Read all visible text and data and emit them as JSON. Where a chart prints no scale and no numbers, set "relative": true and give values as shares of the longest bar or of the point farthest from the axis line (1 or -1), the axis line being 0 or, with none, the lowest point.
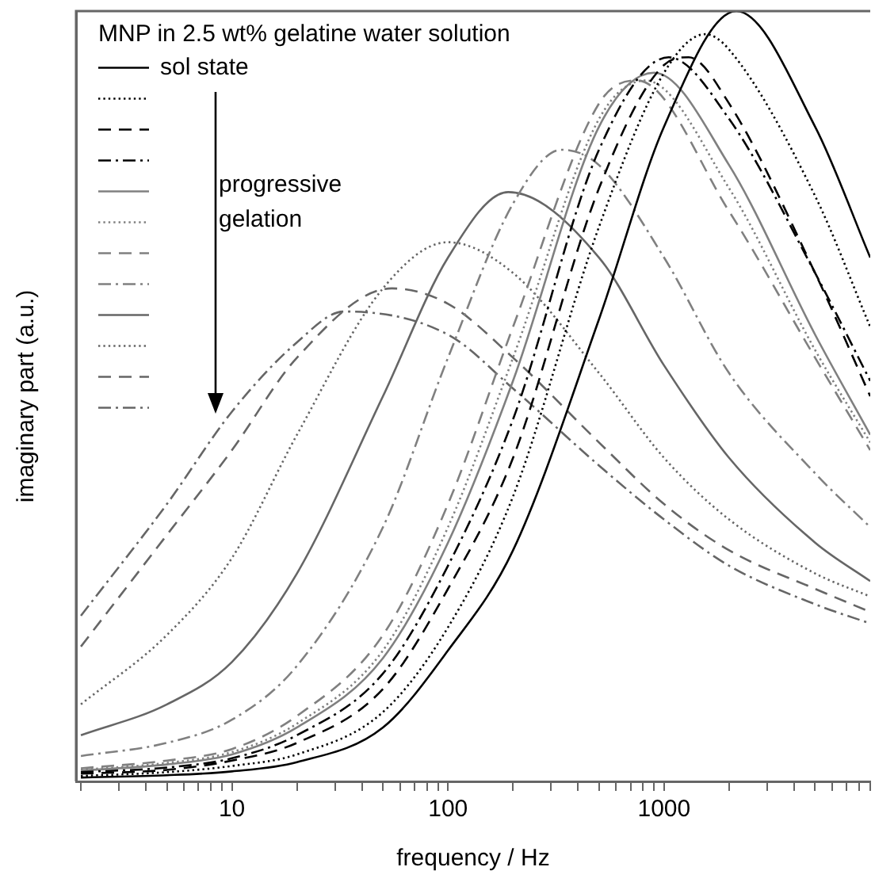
{
  "chart_data": {
    "type": "line",
    "relative": true,
    "xlabel": "frequency / Hz",
    "ylabel": "imaginary part (a.u.)",
    "legend_title": "MNP in 2.5 wt% gelatine water solution",
    "legend": "top left",
    "log": "x",
    "grid": false,
    "marker": "none",
    "xlim": [
      1.9,
      9000
    ],
    "xticks": [
      {
        "value": 2,
        "label": null
      },
      {
        "value": 3,
        "label": null
      },
      {
        "value": 4,
        "label": null
      },
      {
        "value": 5,
        "label": null
      },
      {
        "value": 6,
        "label": null
      },
      {
        "value": 7,
        "label": null
      },
      {
        "value": 8,
        "label": null
      },
      {
        "value": 9,
        "label": null
      },
      10,
      {
        "value": 20,
        "label": null
      },
      {
        "value": 30,
        "label": null
      },
      {
        "value": 40,
        "label": null
      },
      {
        "value": 50,
        "label": null
      },
      {
        "value": 60,
        "label": null
      },
      {
        "value": 70,
        "label": null
      },
      {
        "value": 80,
        "label": null
      },
      {
        "value": 90,
        "label": null
      },
      100,
      {
        "value": 200,
        "label": null
      },
      {
        "value": 300,
        "label": null
      },
      {
        "value": 400,
        "label": null
      },
      {
        "value": 500,
        "label": null
      },
      {
        "value": 600,
        "label": null
      },
      {
        "value": 700,
        "label": null
      },
      {
        "value": 800,
        "label": null
      },
      {
        "value": 900,
        "label": null
      },
      1000,
      {
        "value": 2000,
        "label": null
      },
      {
        "value": 3000,
        "label": null
      },
      {
        "value": 4000,
        "label": null
      },
      {
        "value": 5000,
        "label": null
      },
      {
        "value": 6000,
        "label": null
      },
      {
        "value": 7000,
        "label": null
      },
      {
        "value": 8000,
        "label": null
      },
      {
        "value": 9000,
        "label": null
      }
    ],
    "annotations": [
      "progressive gelation"
    ],
    "series": [
      {
        "name": "sol state",
        "color": "#000000",
        "line_style": "solid",
        "x": [
          2,
          5,
          10,
          20,
          50,
          100,
          200,
          500,
          1000,
          2160,
          5000,
          9000
        ],
        "values": [
          0.005,
          0.008,
          0.013,
          0.025,
          0.07,
          0.17,
          0.3,
          0.6,
          0.85,
          1.0,
          0.85,
          0.68
        ]
      },
      {
        "color": "#000000",
        "line_style": "dotted",
        "x": [
          2,
          5,
          10,
          20,
          50,
          100,
          200,
          500,
          1000,
          1550,
          2000,
          5000,
          9000
        ],
        "values": [
          0.007,
          0.012,
          0.02,
          0.035,
          0.09,
          0.2,
          0.37,
          0.72,
          0.92,
          0.97,
          0.95,
          0.76,
          0.59
        ]
      },
      {
        "color": "#000000",
        "line_style": "dashed",
        "x": [
          2,
          5,
          10,
          20,
          50,
          100,
          200,
          500,
          1000,
          1300,
          2000,
          5000,
          9000
        ],
        "values": [
          0.01,
          0.015,
          0.027,
          0.05,
          0.12,
          0.25,
          0.42,
          0.77,
          0.93,
          0.94,
          0.88,
          0.66,
          0.5
        ]
      },
      {
        "color": "#000000",
        "line_style": "dashdot",
        "x": [
          2,
          5,
          10,
          20,
          50,
          100,
          200,
          500,
          1050,
          2000,
          5000,
          9000
        ],
        "values": [
          0.012,
          0.018,
          0.03,
          0.06,
          0.14,
          0.28,
          0.47,
          0.82,
          0.94,
          0.86,
          0.66,
          0.52
        ]
      },
      {
        "color": "#808080",
        "line_style": "solid",
        "x": [
          2,
          5,
          10,
          20,
          50,
          100,
          200,
          500,
          900,
          2000,
          5000,
          9000
        ],
        "values": [
          0.014,
          0.022,
          0.035,
          0.07,
          0.16,
          0.31,
          0.52,
          0.85,
          0.92,
          0.8,
          0.58,
          0.45
        ]
      },
      {
        "color": "#808080",
        "line_style": "dotted",
        "x": [
          2,
          5,
          10,
          20,
          50,
          100,
          200,
          500,
          820,
          2000,
          5000,
          9000
        ],
        "values": [
          0.015,
          0.024,
          0.038,
          0.075,
          0.17,
          0.33,
          0.55,
          0.86,
          0.91,
          0.77,
          0.56,
          0.44
        ]
      },
      {
        "color": "#808080",
        "line_style": "dashed",
        "x": [
          2,
          5,
          10,
          20,
          50,
          100,
          200,
          500,
          750,
          2000,
          5000,
          9000
        ],
        "values": [
          0.017,
          0.027,
          0.042,
          0.085,
          0.19,
          0.36,
          0.59,
          0.88,
          0.91,
          0.74,
          0.55,
          0.43
        ]
      },
      {
        "color": "#808080",
        "line_style": "dashdot",
        "x": [
          2,
          5,
          10,
          20,
          50,
          100,
          200,
          335,
          500,
          1000,
          2000,
          5000,
          9000
        ],
        "values": [
          0.033,
          0.05,
          0.08,
          0.15,
          0.33,
          0.55,
          0.75,
          0.82,
          0.8,
          0.68,
          0.53,
          0.4,
          0.33
        ]
      },
      {
        "color": "#666666",
        "line_style": "solid",
        "x": [
          2,
          5,
          10,
          20,
          50,
          100,
          190,
          500,
          1000,
          2000,
          5000,
          9000
        ],
        "values": [
          0.06,
          0.1,
          0.155,
          0.27,
          0.5,
          0.68,
          0.765,
          0.68,
          0.54,
          0.42,
          0.31,
          0.26
        ]
      },
      {
        "color": "#666666",
        "line_style": "dotted",
        "x": [
          2,
          5,
          10,
          20,
          50,
          100,
          200,
          500,
          1000,
          2000,
          5000,
          9000
        ],
        "values": [
          0.1,
          0.19,
          0.29,
          0.45,
          0.64,
          0.7,
          0.66,
          0.53,
          0.42,
          0.34,
          0.27,
          0.24
        ]
      },
      {
        "color": "#666666",
        "line_style": "dashed",
        "x": [
          2,
          5,
          10,
          20,
          55,
          100,
          200,
          500,
          1000,
          2000,
          5000,
          9000
        ],
        "values": [
          0.175,
          0.32,
          0.43,
          0.55,
          0.64,
          0.62,
          0.55,
          0.44,
          0.36,
          0.3,
          0.25,
          0.22
        ]
      },
      {
        "color": "#666666",
        "line_style": "dashdot",
        "x": [
          2,
          5,
          10,
          20,
          33,
          100,
          200,
          500,
          1000,
          2000,
          5000,
          9000
        ],
        "values": [
          0.215,
          0.36,
          0.48,
          0.57,
          0.61,
          0.58,
          0.51,
          0.41,
          0.34,
          0.28,
          0.23,
          0.205
        ]
      }
    ]
  }
}
